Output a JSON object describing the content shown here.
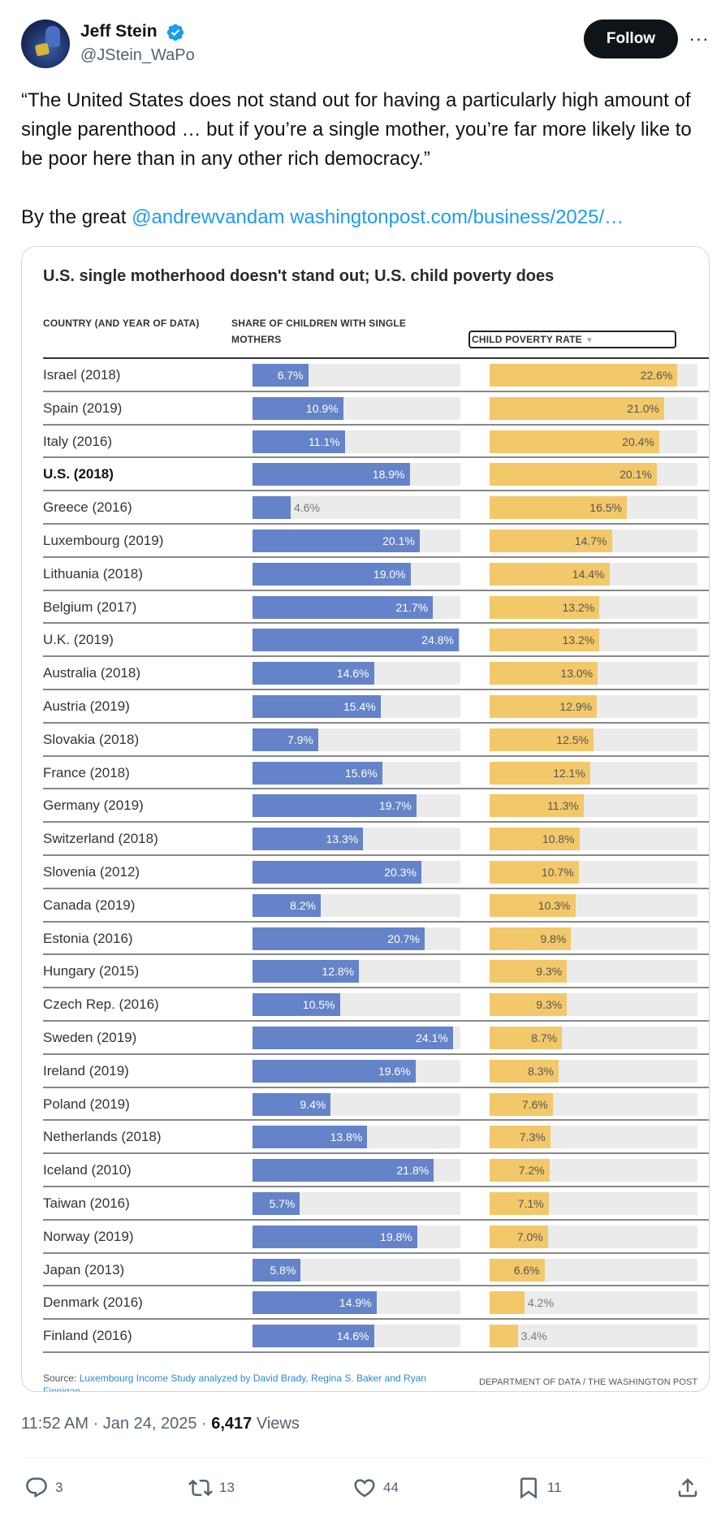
{
  "tweet": {
    "author_name": "Jeff Stein",
    "handle": "@JStein_WaPo",
    "follow_label": "Follow",
    "more_label": "···",
    "quote_text": "“The United States does not stand out for having a particularly high amount of single parenthood … but if you’re a single mother, you’re far more likely like to be poor here than in any other rich democracy.”",
    "byline_prefix": "By the great ",
    "mention": "@andrewvandam",
    "url": "washingtonpost.com/business/2025/…",
    "timestamp": "11:52 AM · Jan 24, 2025 · ",
    "views_count": "6,417",
    "views_label": " Views",
    "replies": "3",
    "reposts": "13",
    "likes": "44",
    "bookmarks": "11"
  },
  "chart_data": {
    "type": "table",
    "title": "U.S. single motherhood doesn't stand out; U.S. child poverty does",
    "columns": [
      "COUNTRY (AND YEAR OF DATA)",
      "SHARE OF CHILDREN WITH SINGLE MOTHERS",
      "CHILD POVERTY RATE"
    ],
    "sort_indicator": "▼",
    "rows": [
      {
        "country": "Israel (2018)",
        "single": 6.7,
        "poverty": 22.6
      },
      {
        "country": "Spain (2019)",
        "single": 10.9,
        "poverty": 21.0
      },
      {
        "country": "Italy (2016)",
        "single": 11.1,
        "poverty": 20.4
      },
      {
        "country": "U.S. (2018)",
        "single": 18.9,
        "poverty": 20.1,
        "highlight": true
      },
      {
        "country": "Greece (2016)",
        "single": 4.6,
        "poverty": 16.5
      },
      {
        "country": "Luxembourg (2019)",
        "single": 20.1,
        "poverty": 14.7
      },
      {
        "country": "Lithuania (2018)",
        "single": 19.0,
        "poverty": 14.4
      },
      {
        "country": "Belgium (2017)",
        "single": 21.7,
        "poverty": 13.2
      },
      {
        "country": "U.K. (2019)",
        "single": 24.8,
        "poverty": 13.2
      },
      {
        "country": "Australia (2018)",
        "single": 14.6,
        "poverty": 13.0
      },
      {
        "country": "Austria (2019)",
        "single": 15.4,
        "poverty": 12.9
      },
      {
        "country": "Slovakia (2018)",
        "single": 7.9,
        "poverty": 12.5
      },
      {
        "country": "France (2018)",
        "single": 15.6,
        "poverty": 12.1
      },
      {
        "country": "Germany (2019)",
        "single": 19.7,
        "poverty": 11.3
      },
      {
        "country": "Switzerland (2018)",
        "single": 13.3,
        "poverty": 10.8
      },
      {
        "country": "Slovenia (2012)",
        "single": 20.3,
        "poverty": 10.7
      },
      {
        "country": "Canada (2019)",
        "single": 8.2,
        "poverty": 10.3
      },
      {
        "country": "Estonia (2016)",
        "single": 20.7,
        "poverty": 9.8
      },
      {
        "country": "Hungary (2015)",
        "single": 12.8,
        "poverty": 9.3
      },
      {
        "country": "Czech Rep. (2016)",
        "single": 10.5,
        "poverty": 9.3
      },
      {
        "country": "Sweden (2019)",
        "single": 24.1,
        "poverty": 8.7
      },
      {
        "country": "Ireland (2019)",
        "single": 19.6,
        "poverty": 8.3
      },
      {
        "country": "Poland (2019)",
        "single": 9.4,
        "poverty": 7.6
      },
      {
        "country": "Netherlands (2018)",
        "single": 13.8,
        "poverty": 7.3
      },
      {
        "country": "Iceland (2010)",
        "single": 21.8,
        "poverty": 7.2
      },
      {
        "country": "Taiwan (2016)",
        "single": 5.7,
        "poverty": 7.1
      },
      {
        "country": "Norway (2019)",
        "single": 19.8,
        "poverty": 7.0
      },
      {
        "country": "Japan (2013)",
        "single": 5.8,
        "poverty": 6.6
      },
      {
        "country": "Denmark (2016)",
        "single": 14.9,
        "poverty": 4.2
      },
      {
        "country": "Finland (2016)",
        "single": 14.6,
        "poverty": 3.4
      }
    ],
    "scale_max": {
      "single": 25,
      "poverty": 25
    },
    "colors": {
      "single": "#6483c9",
      "poverty": "#f2c86a",
      "track": "#ebebeb"
    },
    "source_prefix": "Source: ",
    "source_text": "Luxembourg Income Study analyzed by David Brady, Regina S. Baker and Ryan Finnigan",
    "credit": "DEPARTMENT OF DATA / THE WASHINGTON POST"
  },
  "colors": {
    "link": "#1d9bf0",
    "verified": "#1d9bf0"
  }
}
